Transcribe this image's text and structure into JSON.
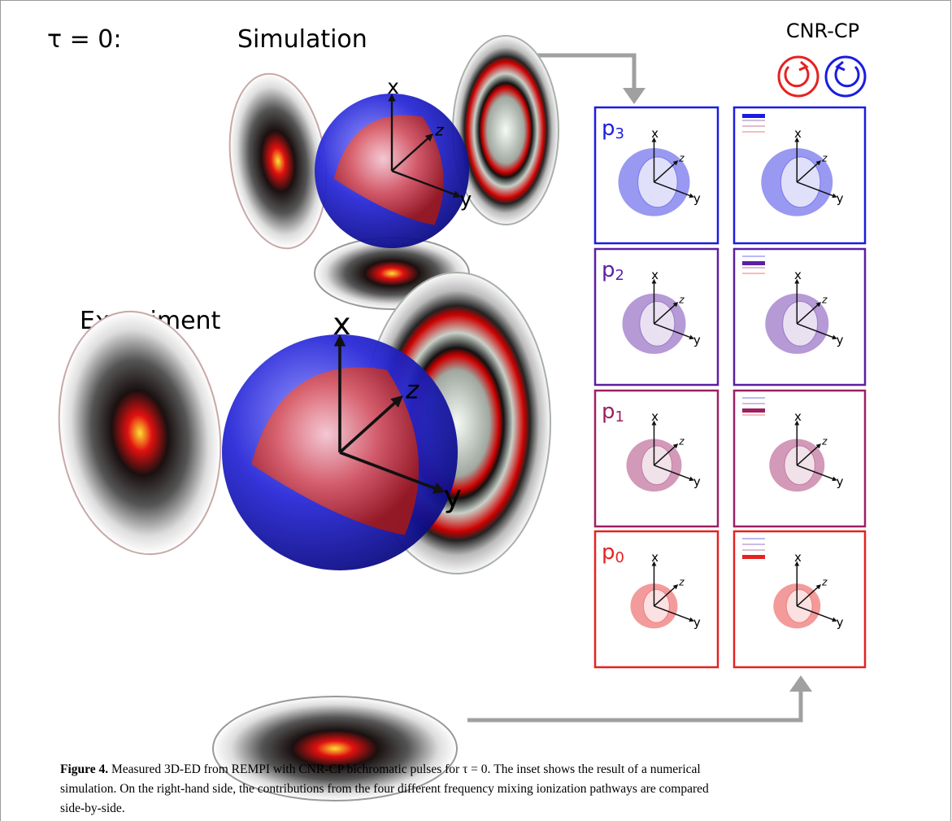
{
  "figure": {
    "tau_label": "τ = 0:",
    "simulation_label": "Simulation",
    "experiment_label": "Experiment",
    "inset_title": "CNR-CP",
    "axes": [
      "x",
      "y",
      "z"
    ],
    "pathways": [
      {
        "label": "p",
        "subscript": "3",
        "color": "#1c1ce0"
      },
      {
        "label": "p",
        "subscript": "2",
        "color": "#5b1fa3"
      },
      {
        "label": "p",
        "subscript": "1",
        "color": "#9c2062"
      },
      {
        "label": "p",
        "subscript": "0",
        "color": "#e52222"
      }
    ]
  },
  "caption": {
    "label": "Figure 4.",
    "lines": [
      "Measured 3D-ED from REMPI with CNR-CP bichromatic pulses for τ = 0. The inset shows the result of a numerical",
      "simulation. On the right-hand side, the contributions from the four different frequency mixing ionization pathways are compared",
      "side-by-side."
    ]
  }
}
